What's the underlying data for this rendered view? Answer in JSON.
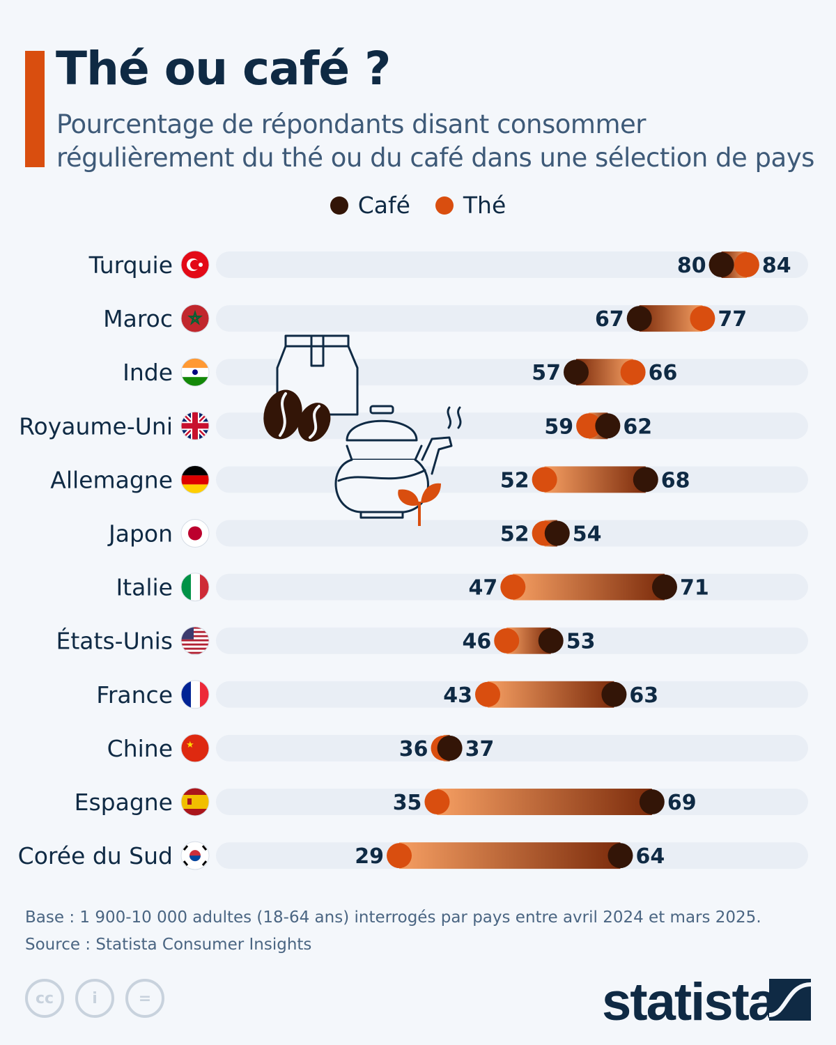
{
  "header": {
    "title": "Thé ou café ?",
    "subtitle": "Pourcentage de répondants disant consommer régulièrement du thé ou du café dans une sélection de pays"
  },
  "colors": {
    "cafe": "#331507",
    "the": "#d94e0f",
    "track": "#e9eef5",
    "gradient_light": "#f59e62",
    "gradient_dark": "#7c2c0c",
    "text": "#0f2a44"
  },
  "chart_data": {
    "type": "dumbbell",
    "title": "Thé ou café ?",
    "legend": [
      {
        "name": "Café",
        "color": "#331507"
      },
      {
        "name": "Thé",
        "color": "#d94e0f"
      }
    ],
    "legend_position": "top-center",
    "xlim": [
      0,
      100
    ],
    "unit": "%",
    "categories": [
      "Turquie",
      "Maroc",
      "Inde",
      "Royaume-Uni",
      "Allemagne",
      "Japon",
      "Italie",
      "États-Unis",
      "France",
      "Chine",
      "Espagne",
      "Corée du Sud"
    ],
    "flags": [
      "turkey",
      "morocco",
      "india",
      "uk",
      "germany",
      "japan",
      "italy",
      "usa",
      "france",
      "china",
      "spain",
      "south-korea"
    ],
    "series": [
      {
        "name": "Café",
        "values": [
          80,
          67,
          57,
          62,
          68,
          54,
          71,
          53,
          63,
          37,
          69,
          64
        ]
      },
      {
        "name": "Thé",
        "values": [
          84,
          77,
          66,
          59,
          52,
          52,
          47,
          46,
          43,
          36,
          35,
          29
        ]
      }
    ]
  },
  "footer": {
    "base": "Base : 1 900-10 000 adultes (18-64 ans) interrogés par pays entre avril 2024 et mars 2025.",
    "source": "Source : Statista Consumer Insights"
  },
  "logo": {
    "text": "statista"
  }
}
